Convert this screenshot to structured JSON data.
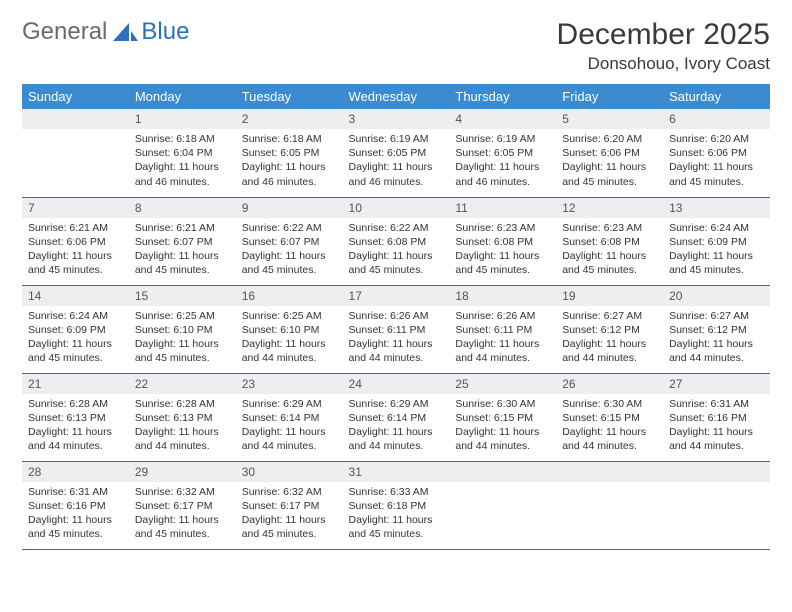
{
  "brand": {
    "part1": "General",
    "part2": "Blue"
  },
  "title": "December 2025",
  "location": "Donsohouo, Ivory Coast",
  "weekdays": [
    "Sunday",
    "Monday",
    "Tuesday",
    "Wednesday",
    "Thursday",
    "Friday",
    "Saturday"
  ],
  "colors": {
    "header_bg": "#3b8bd0",
    "header_fg": "#ffffff",
    "daynum_bg": "#eceeef",
    "rule": "#2a71b8",
    "brand_blue": "#2a71b8",
    "brand_gray": "#6a6a6a",
    "text": "#333333"
  },
  "start_offset": 1,
  "days": [
    {
      "n": "1",
      "sunrise": "Sunrise: 6:18 AM",
      "sunset": "Sunset: 6:04 PM",
      "day": "Daylight: 11 hours and 46 minutes."
    },
    {
      "n": "2",
      "sunrise": "Sunrise: 6:18 AM",
      "sunset": "Sunset: 6:05 PM",
      "day": "Daylight: 11 hours and 46 minutes."
    },
    {
      "n": "3",
      "sunrise": "Sunrise: 6:19 AM",
      "sunset": "Sunset: 6:05 PM",
      "day": "Daylight: 11 hours and 46 minutes."
    },
    {
      "n": "4",
      "sunrise": "Sunrise: 6:19 AM",
      "sunset": "Sunset: 6:05 PM",
      "day": "Daylight: 11 hours and 46 minutes."
    },
    {
      "n": "5",
      "sunrise": "Sunrise: 6:20 AM",
      "sunset": "Sunset: 6:06 PM",
      "day": "Daylight: 11 hours and 45 minutes."
    },
    {
      "n": "6",
      "sunrise": "Sunrise: 6:20 AM",
      "sunset": "Sunset: 6:06 PM",
      "day": "Daylight: 11 hours and 45 minutes."
    },
    {
      "n": "7",
      "sunrise": "Sunrise: 6:21 AM",
      "sunset": "Sunset: 6:06 PM",
      "day": "Daylight: 11 hours and 45 minutes."
    },
    {
      "n": "8",
      "sunrise": "Sunrise: 6:21 AM",
      "sunset": "Sunset: 6:07 PM",
      "day": "Daylight: 11 hours and 45 minutes."
    },
    {
      "n": "9",
      "sunrise": "Sunrise: 6:22 AM",
      "sunset": "Sunset: 6:07 PM",
      "day": "Daylight: 11 hours and 45 minutes."
    },
    {
      "n": "10",
      "sunrise": "Sunrise: 6:22 AM",
      "sunset": "Sunset: 6:08 PM",
      "day": "Daylight: 11 hours and 45 minutes."
    },
    {
      "n": "11",
      "sunrise": "Sunrise: 6:23 AM",
      "sunset": "Sunset: 6:08 PM",
      "day": "Daylight: 11 hours and 45 minutes."
    },
    {
      "n": "12",
      "sunrise": "Sunrise: 6:23 AM",
      "sunset": "Sunset: 6:08 PM",
      "day": "Daylight: 11 hours and 45 minutes."
    },
    {
      "n": "13",
      "sunrise": "Sunrise: 6:24 AM",
      "sunset": "Sunset: 6:09 PM",
      "day": "Daylight: 11 hours and 45 minutes."
    },
    {
      "n": "14",
      "sunrise": "Sunrise: 6:24 AM",
      "sunset": "Sunset: 6:09 PM",
      "day": "Daylight: 11 hours and 45 minutes."
    },
    {
      "n": "15",
      "sunrise": "Sunrise: 6:25 AM",
      "sunset": "Sunset: 6:10 PM",
      "day": "Daylight: 11 hours and 45 minutes."
    },
    {
      "n": "16",
      "sunrise": "Sunrise: 6:25 AM",
      "sunset": "Sunset: 6:10 PM",
      "day": "Daylight: 11 hours and 44 minutes."
    },
    {
      "n": "17",
      "sunrise": "Sunrise: 6:26 AM",
      "sunset": "Sunset: 6:11 PM",
      "day": "Daylight: 11 hours and 44 minutes."
    },
    {
      "n": "18",
      "sunrise": "Sunrise: 6:26 AM",
      "sunset": "Sunset: 6:11 PM",
      "day": "Daylight: 11 hours and 44 minutes."
    },
    {
      "n": "19",
      "sunrise": "Sunrise: 6:27 AM",
      "sunset": "Sunset: 6:12 PM",
      "day": "Daylight: 11 hours and 44 minutes."
    },
    {
      "n": "20",
      "sunrise": "Sunrise: 6:27 AM",
      "sunset": "Sunset: 6:12 PM",
      "day": "Daylight: 11 hours and 44 minutes."
    },
    {
      "n": "21",
      "sunrise": "Sunrise: 6:28 AM",
      "sunset": "Sunset: 6:13 PM",
      "day": "Daylight: 11 hours and 44 minutes."
    },
    {
      "n": "22",
      "sunrise": "Sunrise: 6:28 AM",
      "sunset": "Sunset: 6:13 PM",
      "day": "Daylight: 11 hours and 44 minutes."
    },
    {
      "n": "23",
      "sunrise": "Sunrise: 6:29 AM",
      "sunset": "Sunset: 6:14 PM",
      "day": "Daylight: 11 hours and 44 minutes."
    },
    {
      "n": "24",
      "sunrise": "Sunrise: 6:29 AM",
      "sunset": "Sunset: 6:14 PM",
      "day": "Daylight: 11 hours and 44 minutes."
    },
    {
      "n": "25",
      "sunrise": "Sunrise: 6:30 AM",
      "sunset": "Sunset: 6:15 PM",
      "day": "Daylight: 11 hours and 44 minutes."
    },
    {
      "n": "26",
      "sunrise": "Sunrise: 6:30 AM",
      "sunset": "Sunset: 6:15 PM",
      "day": "Daylight: 11 hours and 44 minutes."
    },
    {
      "n": "27",
      "sunrise": "Sunrise: 6:31 AM",
      "sunset": "Sunset: 6:16 PM",
      "day": "Daylight: 11 hours and 44 minutes."
    },
    {
      "n": "28",
      "sunrise": "Sunrise: 6:31 AM",
      "sunset": "Sunset: 6:16 PM",
      "day": "Daylight: 11 hours and 45 minutes."
    },
    {
      "n": "29",
      "sunrise": "Sunrise: 6:32 AM",
      "sunset": "Sunset: 6:17 PM",
      "day": "Daylight: 11 hours and 45 minutes."
    },
    {
      "n": "30",
      "sunrise": "Sunrise: 6:32 AM",
      "sunset": "Sunset: 6:17 PM",
      "day": "Daylight: 11 hours and 45 minutes."
    },
    {
      "n": "31",
      "sunrise": "Sunrise: 6:33 AM",
      "sunset": "Sunset: 6:18 PM",
      "day": "Daylight: 11 hours and 45 minutes."
    }
  ]
}
